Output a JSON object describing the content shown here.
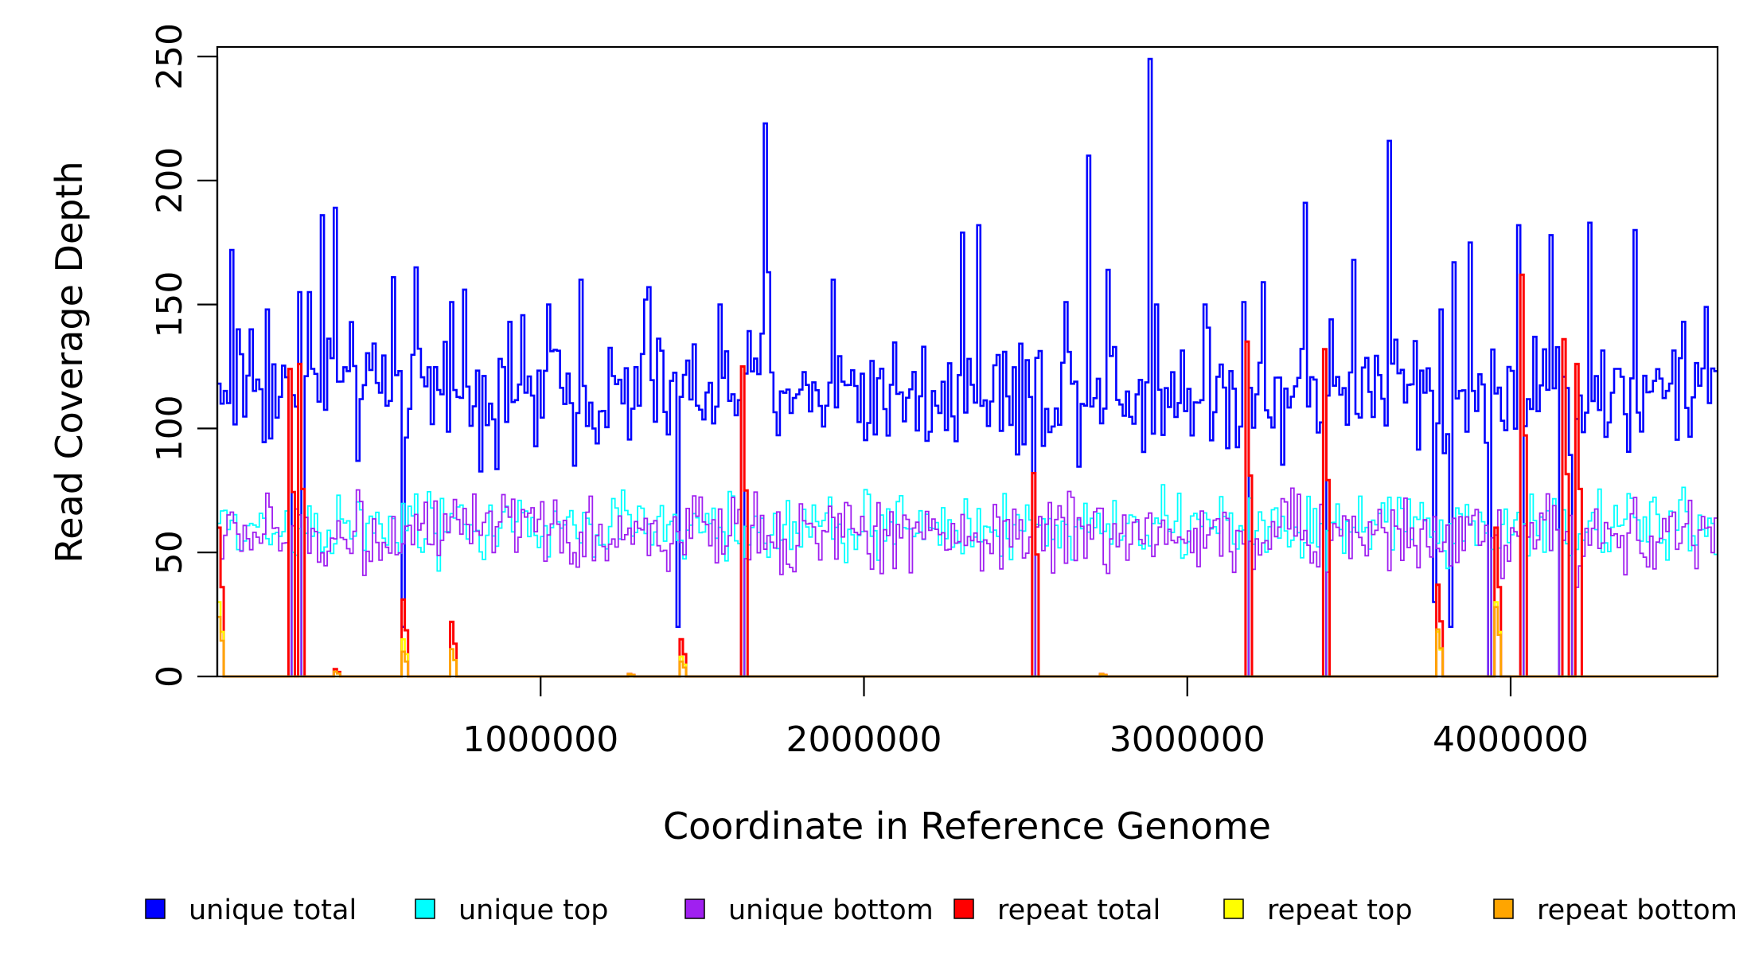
{
  "chart_data": {
    "type": "line",
    "title": "",
    "xlabel": "Coordinate in Reference Genome",
    "ylabel": "Read Coverage Depth",
    "xlim": [
      0,
      4640000
    ],
    "ylim": [
      0,
      250
    ],
    "x_ticks": [
      1000000,
      2000000,
      3000000,
      4000000
    ],
    "x_tick_labels": [
      "1000000",
      "2000000",
      "3000000",
      "4000000"
    ],
    "y_ticks": [
      0,
      50,
      100,
      150,
      200,
      250
    ],
    "y_tick_labels": [
      "0",
      "50",
      "100",
      "150",
      "200",
      "250"
    ],
    "bin_size": 10000,
    "grid": false,
    "legend_position": "bottom",
    "series": [
      {
        "name": "unique total",
        "color": "#0000ff",
        "step": true,
        "summary": {
          "typical_min": 80,
          "typical_max": 150,
          "typical": 112
        },
        "peaks": [
          [
            10000,
            110
          ],
          [
            40000,
            172
          ],
          [
            60000,
            140
          ],
          [
            100000,
            140
          ],
          [
            150000,
            148
          ],
          [
            250000,
            155
          ],
          [
            280000,
            155
          ],
          [
            320000,
            186
          ],
          [
            365000,
            189
          ],
          [
            540000,
            161
          ],
          [
            610000,
            165
          ],
          [
            720000,
            151
          ],
          [
            760000,
            156
          ],
          [
            900000,
            143
          ],
          [
            1020000,
            150
          ],
          [
            1120000,
            160
          ],
          [
            1320000,
            152
          ],
          [
            1330000,
            157
          ],
          [
            1420000,
            148
          ],
          [
            1550000,
            150
          ],
          [
            1690000,
            223
          ],
          [
            1700000,
            163
          ],
          [
            1900000,
            160
          ],
          [
            2300000,
            179
          ],
          [
            2350000,
            182
          ],
          [
            2620000,
            151
          ],
          [
            2690000,
            210
          ],
          [
            2750000,
            164
          ],
          [
            2880000,
            249
          ],
          [
            2900000,
            150
          ],
          [
            3050000,
            150
          ],
          [
            3170000,
            151
          ],
          [
            3230000,
            159
          ],
          [
            3360000,
            191
          ],
          [
            3440000,
            144
          ],
          [
            3510000,
            168
          ],
          [
            3620000,
            216
          ],
          [
            3780000,
            148
          ],
          [
            3820000,
            167
          ],
          [
            3870000,
            175
          ],
          [
            4020000,
            182
          ],
          [
            4120000,
            178
          ],
          [
            4240000,
            183
          ],
          [
            4380000,
            180
          ],
          [
            4600000,
            149
          ]
        ],
        "dips": [
          [
            220000,
            0
          ],
          [
            260000,
            0
          ],
          [
            570000,
            20
          ],
          [
            1420000,
            20
          ],
          [
            1620000,
            0
          ],
          [
            2520000,
            0
          ],
          [
            3180000,
            0
          ],
          [
            3420000,
            0
          ],
          [
            3760000,
            30
          ],
          [
            3810000,
            20
          ],
          [
            3930000,
            0
          ],
          [
            4030000,
            0
          ],
          [
            4150000,
            0
          ],
          [
            4190000,
            0
          ]
        ]
      },
      {
        "name": "unique top",
        "color": "#00ffff",
        "step": true,
        "summary": {
          "typical_min": 40,
          "typical_max": 80,
          "typical": 58
        },
        "dips": [
          [
            220000,
            0
          ],
          [
            260000,
            0
          ],
          [
            1620000,
            0
          ],
          [
            2520000,
            0
          ],
          [
            3180000,
            0
          ],
          [
            3420000,
            0
          ],
          [
            3930000,
            0
          ],
          [
            4030000,
            0
          ],
          [
            4150000,
            0
          ],
          [
            4190000,
            0
          ]
        ]
      },
      {
        "name": "unique bottom",
        "color": "#a020f0",
        "step": true,
        "summary": {
          "typical_min": 35,
          "typical_max": 80,
          "typical": 56
        },
        "dips": [
          [
            220000,
            0
          ],
          [
            260000,
            0
          ],
          [
            1620000,
            0
          ],
          [
            2520000,
            0
          ],
          [
            3180000,
            0
          ],
          [
            3420000,
            0
          ],
          [
            3930000,
            0
          ],
          [
            4030000,
            0
          ],
          [
            4150000,
            0
          ],
          [
            4190000,
            0
          ]
        ]
      },
      {
        "name": "repeat total",
        "color": "#ff0000",
        "step": true,
        "baseline": 0,
        "spikes": [
          [
            5000,
            60
          ],
          [
            225000,
            124
          ],
          [
            255000,
            126
          ],
          [
            365000,
            3
          ],
          [
            575000,
            31
          ],
          [
            725000,
            22
          ],
          [
            1270000,
            1
          ],
          [
            1435000,
            15
          ],
          [
            1625000,
            125
          ],
          [
            2520000,
            82
          ],
          [
            2730000,
            1
          ],
          [
            3185000,
            135
          ],
          [
            3420000,
            132
          ],
          [
            3775000,
            37
          ],
          [
            3950000,
            60
          ],
          [
            4035000,
            162
          ],
          [
            4160000,
            136
          ],
          [
            4200000,
            126
          ]
        ]
      },
      {
        "name": "repeat top",
        "color": "#ffff00",
        "step": true,
        "baseline": 0,
        "spikes": [
          [
            5000,
            30
          ],
          [
            575000,
            15
          ],
          [
            725000,
            11
          ],
          [
            1435000,
            8
          ],
          [
            3775000,
            18
          ],
          [
            3950000,
            30
          ]
        ]
      },
      {
        "name": "repeat bottom",
        "color": "#ffa500",
        "step": true,
        "baseline": 0,
        "spikes": [
          [
            5000,
            24
          ],
          [
            365000,
            2
          ],
          [
            575000,
            10
          ],
          [
            725000,
            11
          ],
          [
            1270000,
            1
          ],
          [
            1435000,
            6
          ],
          [
            2730000,
            1
          ],
          [
            3775000,
            19
          ],
          [
            3950000,
            28
          ]
        ]
      }
    ]
  }
}
